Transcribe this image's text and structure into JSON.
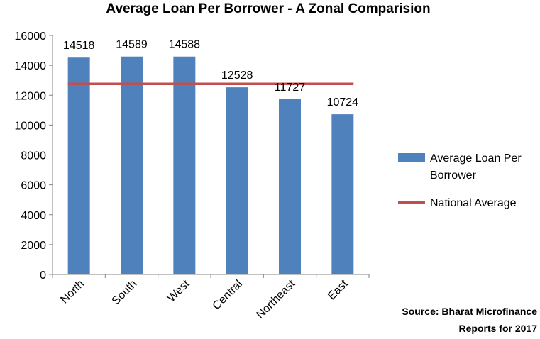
{
  "chart_data": {
    "type": "bar",
    "title": "Average Loan Per Borrower - A Zonal Comparision",
    "categories": [
      "North",
      "South",
      "West",
      "Central",
      "Northeast",
      "East"
    ],
    "series": [
      {
        "name": "Average Loan Per Borrower",
        "type": "bar",
        "color": "#4f81bd",
        "values": [
          14518,
          14589,
          14588,
          12528,
          11727,
          10724
        ],
        "data_labels": [
          "14518",
          "14589",
          "14588",
          "12528",
          "11727",
          "10724"
        ]
      },
      {
        "name": "National Average",
        "type": "line",
        "color": "#c0504d",
        "values": [
          12760,
          12760,
          12760,
          12760,
          12760,
          12760
        ]
      }
    ],
    "ylim": [
      0,
      16000
    ],
    "yticks": [
      "0",
      "2000",
      "4000",
      "6000",
      "8000",
      "10000",
      "12000",
      "14000",
      "16000"
    ],
    "legend": {
      "position": "right",
      "bar_label_lines": [
        "Average Loan Per",
        "Borrower"
      ],
      "line_label": "National Average"
    },
    "grid": false,
    "source_lines": [
      "Source: Bharat Microfinance",
      "Reports for 2017"
    ]
  }
}
